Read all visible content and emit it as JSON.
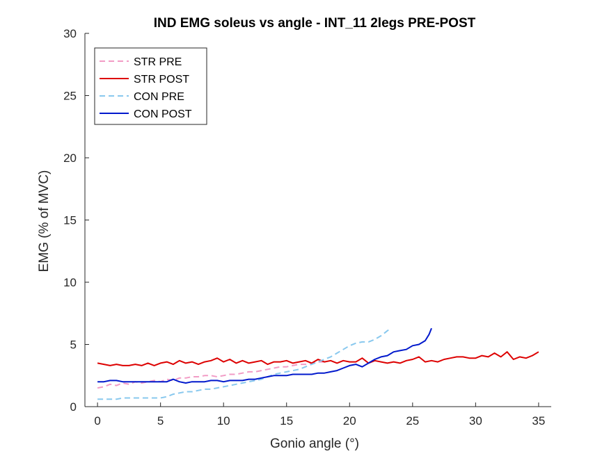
{
  "chart_data": {
    "type": "line",
    "title": "IND EMG soleus vs angle - INT_11 2legs PRE-POST",
    "xlabel": "Gonio angle (°)",
    "ylabel": "EMG (% of MVC)",
    "xlim": [
      -1,
      36
    ],
    "ylim": [
      0,
      30
    ],
    "xticks": [
      0,
      5,
      10,
      15,
      20,
      25,
      30,
      35
    ],
    "yticks": [
      0,
      5,
      10,
      15,
      20,
      25,
      30
    ],
    "xtick_labels": [
      "0",
      "5",
      "10",
      "15",
      "20",
      "25",
      "30",
      "35"
    ],
    "ytick_labels": [
      "0",
      "5",
      "10",
      "15",
      "20",
      "25",
      "30"
    ],
    "grid": false,
    "legend_location": "top-left",
    "series": [
      {
        "name": "STR PRE",
        "color": "#f29bc5",
        "style": "dashed",
        "x": [
          0,
          0.5,
          1,
          1.5,
          2,
          2.5,
          3,
          3.5,
          4,
          4.5,
          5,
          5.5,
          6,
          6.5,
          7,
          7.5,
          8,
          8.5,
          9,
          9.5,
          10,
          10.5,
          11,
          11.5,
          12,
          12.5,
          13,
          13.5,
          14,
          14.5,
          15,
          15.5,
          16,
          16.5,
          17,
          17.5,
          18
        ],
        "y": [
          1.5,
          1.6,
          1.8,
          1.7,
          1.9,
          1.8,
          2.0,
          1.9,
          2.0,
          2.1,
          2.0,
          2.2,
          2.1,
          2.3,
          2.3,
          2.4,
          2.4,
          2.5,
          2.5,
          2.4,
          2.5,
          2.6,
          2.6,
          2.7,
          2.8,
          2.8,
          2.9,
          3.0,
          3.1,
          3.2,
          3.2,
          3.3,
          3.4,
          3.4,
          3.5,
          3.6,
          3.6
        ]
      },
      {
        "name": "STR POST",
        "color": "#dd0000",
        "style": "solid",
        "x": [
          0,
          0.5,
          1,
          1.5,
          2,
          2.5,
          3,
          3.5,
          4,
          4.5,
          5,
          5.5,
          6,
          6.5,
          7,
          7.5,
          8,
          8.5,
          9,
          9.5,
          10,
          10.5,
          11,
          11.5,
          12,
          12.5,
          13,
          13.5,
          14,
          14.5,
          15,
          15.5,
          16,
          16.5,
          17,
          17.5,
          18,
          18.5,
          19,
          19.5,
          20,
          20.5,
          21,
          21.5,
          22,
          22.5,
          23,
          23.5,
          24,
          24.5,
          25,
          25.5,
          26,
          26.5,
          27,
          27.5,
          28,
          28.5,
          29,
          29.5,
          30,
          30.5,
          31,
          31.5,
          32,
          32.5,
          33,
          33.5,
          34,
          34.5,
          35
        ],
        "y": [
          3.5,
          3.4,
          3.3,
          3.4,
          3.3,
          3.3,
          3.4,
          3.3,
          3.5,
          3.3,
          3.5,
          3.6,
          3.4,
          3.7,
          3.5,
          3.6,
          3.4,
          3.6,
          3.7,
          3.9,
          3.6,
          3.8,
          3.5,
          3.7,
          3.5,
          3.6,
          3.7,
          3.4,
          3.6,
          3.6,
          3.7,
          3.5,
          3.6,
          3.7,
          3.5,
          3.8,
          3.6,
          3.7,
          3.5,
          3.7,
          3.6,
          3.6,
          3.9,
          3.5,
          3.7,
          3.6,
          3.5,
          3.6,
          3.5,
          3.7,
          3.8,
          4.0,
          3.6,
          3.7,
          3.6,
          3.8,
          3.9,
          4.0,
          4.0,
          3.9,
          3.9,
          4.1,
          4.0,
          4.3,
          4.0,
          4.4,
          3.8,
          4.0,
          3.9,
          4.1,
          4.4
        ]
      },
      {
        "name": "CON PRE",
        "color": "#88c8ee",
        "style": "dashed",
        "x": [
          0,
          0.5,
          1,
          1.5,
          2,
          2.5,
          3,
          3.5,
          4,
          4.5,
          5,
          5.5,
          6,
          6.5,
          7,
          7.5,
          8,
          8.5,
          9,
          9.5,
          10,
          10.5,
          11,
          11.5,
          12,
          12.5,
          13,
          13.5,
          14,
          14.5,
          15,
          15.5,
          16,
          16.5,
          17,
          17.5,
          18,
          18.5,
          19,
          19.5,
          20,
          20.5,
          21,
          21.5,
          22,
          22.5,
          23,
          23.3
        ],
        "y": [
          0.6,
          0.6,
          0.6,
          0.6,
          0.7,
          0.7,
          0.7,
          0.7,
          0.7,
          0.7,
          0.7,
          0.8,
          1.0,
          1.1,
          1.2,
          1.2,
          1.3,
          1.4,
          1.4,
          1.5,
          1.6,
          1.7,
          1.8,
          1.9,
          2.0,
          2.1,
          2.2,
          2.4,
          2.6,
          2.7,
          2.8,
          2.9,
          3.0,
          3.2,
          3.4,
          3.6,
          3.8,
          4.0,
          4.3,
          4.6,
          4.9,
          5.1,
          5.2,
          5.2,
          5.4,
          5.7,
          6.1,
          6.3
        ]
      },
      {
        "name": "CON POST",
        "color": "#0018cc",
        "style": "solid",
        "x": [
          0,
          0.5,
          1,
          1.5,
          2,
          2.5,
          3,
          3.5,
          4,
          4.5,
          5,
          5.5,
          6,
          6.5,
          7,
          7.5,
          8,
          8.5,
          9,
          9.5,
          10,
          10.5,
          11,
          11.5,
          12,
          12.5,
          13,
          13.5,
          14,
          14.5,
          15,
          15.5,
          16,
          16.5,
          17,
          17.5,
          18,
          18.5,
          19,
          19.5,
          20,
          20.5,
          21,
          21.5,
          22,
          22.5,
          23,
          23.5,
          24,
          24.5,
          25,
          25.5,
          26,
          26.3,
          26.5
        ],
        "y": [
          2.0,
          2.0,
          2.1,
          2.1,
          2.0,
          2.0,
          2.0,
          2.0,
          2.0,
          2.0,
          2.0,
          2.0,
          2.2,
          2.0,
          1.9,
          2.0,
          2.0,
          2.0,
          2.1,
          2.1,
          2.0,
          2.1,
          2.1,
          2.1,
          2.2,
          2.2,
          2.3,
          2.4,
          2.5,
          2.5,
          2.5,
          2.6,
          2.6,
          2.6,
          2.6,
          2.7,
          2.7,
          2.8,
          2.9,
          3.1,
          3.3,
          3.4,
          3.2,
          3.5,
          3.8,
          4.0,
          4.1,
          4.4,
          4.5,
          4.6,
          4.9,
          5.0,
          5.3,
          5.8,
          6.3
        ]
      }
    ]
  }
}
